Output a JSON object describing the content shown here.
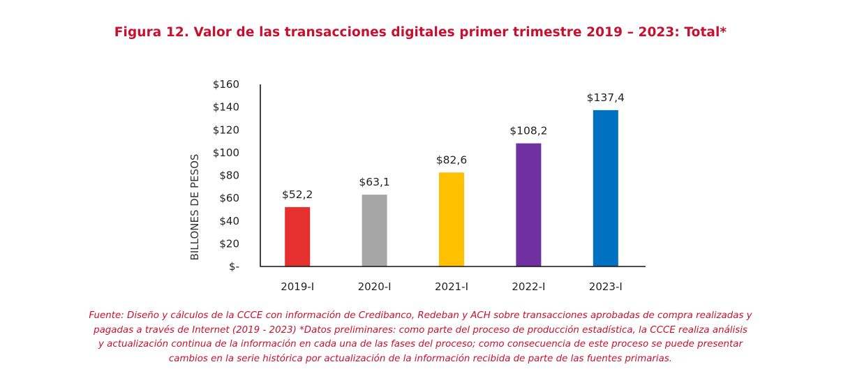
{
  "figure": {
    "title": "Figura 12.  Valor de las transacciones digitales primer trimestre 2019 – 2023: Total*",
    "source_lines": [
      "Fuente: Diseño y cálculos de la CCCE con información de Credibanco, Redeban y ACH sobre transacciones aprobadas de compra realizadas y",
      "pagadas a través de Internet (2019 - 2023) *Datos preliminares:  como parte del proceso de producción estadística, la CCCE realiza análisis",
      "y actualización continua de la información en cada una de las fases del proceso; como consecuencia de este proceso se puede presentar",
      "cambios en la serie histórica por actualización de la información recibida de parte de las fuentes primarias."
    ]
  },
  "chart_data": {
    "type": "bar",
    "title": "Figura 12.  Valor de las transacciones digitales primer trimestre 2019 – 2023: Total*",
    "xlabel": "",
    "ylabel": "BILLONES DE PESOS",
    "categories": [
      "2019-I",
      "2020-I",
      "2021-I",
      "2022-I",
      "2023-I"
    ],
    "values": [
      52.2,
      63.1,
      82.6,
      108.2,
      137.4
    ],
    "data_labels": [
      "$52,2",
      "$63,1",
      "$82,6",
      "$108,2",
      "$137,4"
    ],
    "colors": [
      "#e63030",
      "#a6a6a6",
      "#ffc000",
      "#7030a0",
      "#0070c0"
    ],
    "ylim": [
      0,
      160
    ],
    "yticks": [
      0,
      20,
      40,
      60,
      80,
      100,
      120,
      140,
      160
    ],
    "ytick_labels": [
      "$-",
      "$20",
      "$40",
      "$60",
      "$80",
      "$100",
      "$120",
      "$140",
      "$160"
    ],
    "grid": false,
    "legend": "none"
  }
}
